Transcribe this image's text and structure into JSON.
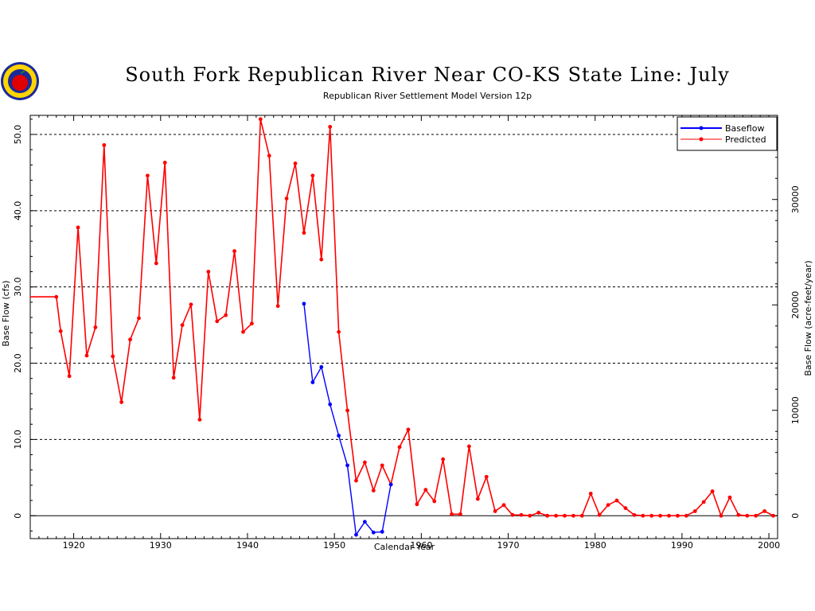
{
  "chart_data": {
    "type": "line",
    "title": "South Fork Republican River Near CO-KS State Line: July",
    "subtitle": "Republican River Settlement Model Version 12p",
    "xlabel": "Calendar Year",
    "ylabel": "Base Flow (cfs)",
    "ylabel_right": "Base Flow (acre-feet/year)",
    "xlim": [
      1915,
      2001
    ],
    "ylim": [
      -3.0,
      52.5
    ],
    "x_ticks": [
      "1920",
      "1930",
      "1940",
      "1950",
      "1960",
      "1970",
      "1980",
      "1990",
      "2000"
    ],
    "y_ticks": [
      "0",
      "10.0",
      "20.0",
      "30.0",
      "40.0",
      "50.0"
    ],
    "y_ticks_right": [
      "0",
      "10000",
      "20000",
      "30000"
    ],
    "grid": "horizontal dashed at 10, 20, 30, 40, 50",
    "legend_position": "top-right",
    "series": [
      {
        "name": "Baseflow",
        "color": "#0000ff",
        "x": [
          1946.5,
          1947.5,
          1948.5,
          1949.5,
          1950.5,
          1951.5,
          1952.5,
          1953.5,
          1954.5,
          1955.5,
          1956.5
        ],
        "y": [
          27.8,
          17.5,
          19.5,
          14.6,
          10.5,
          6.6,
          -2.5,
          -0.8,
          -2.2,
          -2.1,
          4.1
        ]
      },
      {
        "name": "Predicted",
        "color": "#ff0000",
        "x": [
          1915.0,
          1918.0,
          1918.5,
          1919.5,
          1920.5,
          1921.5,
          1922.5,
          1923.5,
          1924.5,
          1925.5,
          1926.5,
          1927.5,
          1928.5,
          1929.5,
          1930.5,
          1931.5,
          1932.5,
          1933.5,
          1934.5,
          1935.5,
          1936.5,
          1937.5,
          1938.5,
          1939.5,
          1940.5,
          1941.5,
          1942.5,
          1943.5,
          1944.5,
          1945.5,
          1946.5,
          1947.5,
          1948.5,
          1949.5,
          1950.5,
          1951.5,
          1952.5,
          1953.5,
          1954.5,
          1955.5,
          1956.5,
          1957.5,
          1958.5,
          1959.5,
          1960.5,
          1961.5,
          1962.5,
          1963.5,
          1964.5,
          1965.5,
          1966.5,
          1967.5,
          1968.5,
          1969.5,
          1970.5,
          1971.5,
          1972.5,
          1973.5,
          1974.5,
          1975.5,
          1976.5,
          1977.5,
          1978.5,
          1979.5,
          1980.5,
          1981.5,
          1982.5,
          1983.5,
          1984.5,
          1985.5,
          1986.5,
          1987.5,
          1988.5,
          1989.5,
          1990.5,
          1991.5,
          1992.5,
          1993.5,
          1994.5,
          1995.5,
          1996.5,
          1997.5,
          1998.5,
          1999.5,
          2000.5
        ],
        "y": [
          28.7,
          28.7,
          24.2,
          18.3,
          37.8,
          21.0,
          24.7,
          48.6,
          20.9,
          14.9,
          23.1,
          25.9,
          44.6,
          33.1,
          46.3,
          18.1,
          25.0,
          27.7,
          12.6,
          32.0,
          25.5,
          26.3,
          34.7,
          24.1,
          25.2,
          52.0,
          47.2,
          27.5,
          41.6,
          46.2,
          37.1,
          44.6,
          33.6,
          51.0,
          24.1,
          13.8,
          4.6,
          7.0,
          3.3,
          6.6,
          4.1,
          9.0,
          11.3,
          1.5,
          3.4,
          1.9,
          7.4,
          0.2,
          0.2,
          9.1,
          2.2,
          5.1,
          0.6,
          1.4,
          0.1,
          0.1,
          0.0,
          0.4,
          0.0,
          0.0,
          0.0,
          0.0,
          0.0,
          2.9,
          0.1,
          1.4,
          2.0,
          1.0,
          0.1,
          0.0,
          0.0,
          0.0,
          0.0,
          0.0,
          0.0,
          0.6,
          1.8,
          3.2,
          0.0,
          2.4,
          0.1,
          0.0,
          0.0,
          0.6,
          0.0
        ]
      }
    ]
  }
}
